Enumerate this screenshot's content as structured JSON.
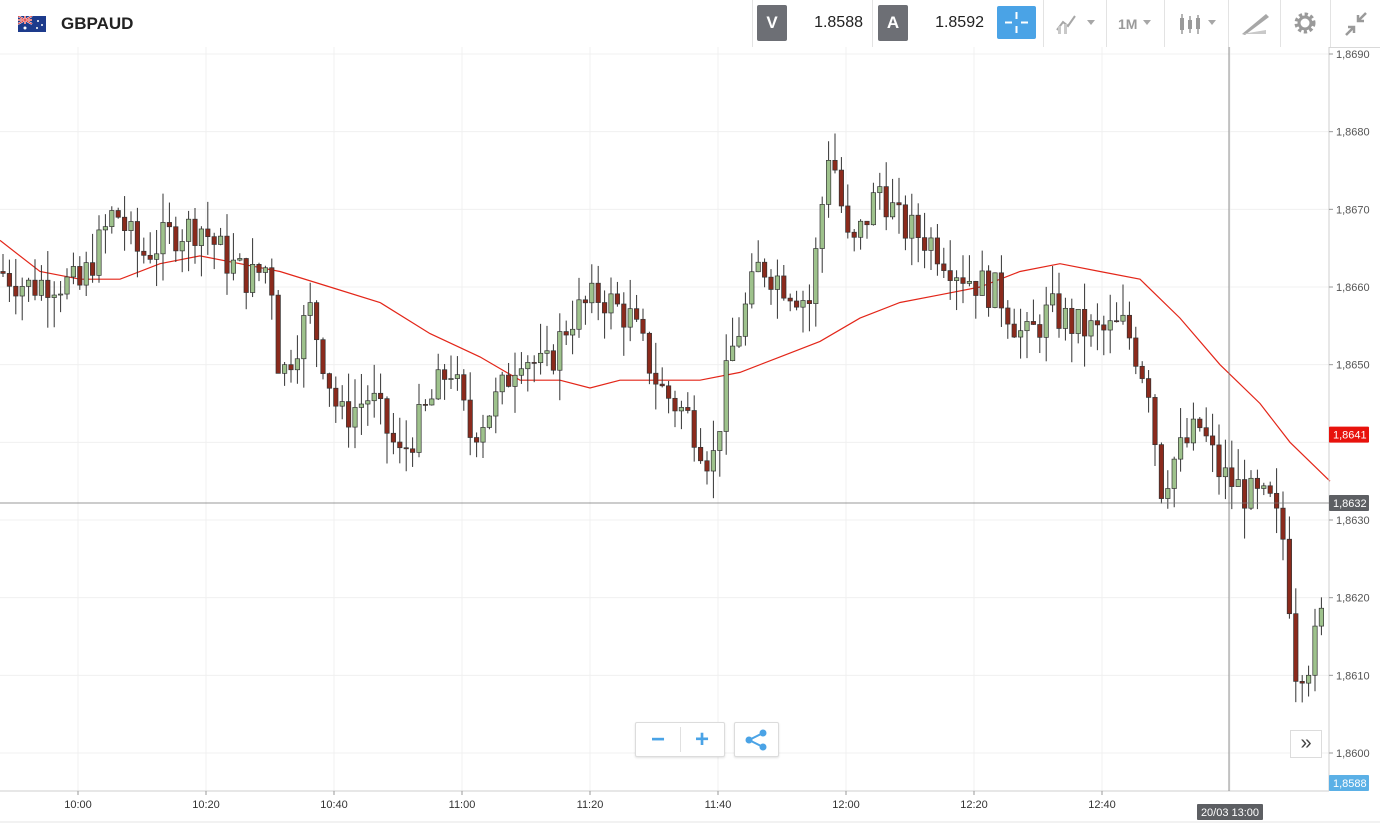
{
  "header": {
    "symbol": "GBPAUD",
    "flag_icon": "gb-au-flag-icon",
    "bid": {
      "letter": "V",
      "price": "1.8588"
    },
    "ask": {
      "letter": "A",
      "price": "1.8592"
    },
    "tools": {
      "timeframe": "1M"
    }
  },
  "controls": {
    "zoom_out": "−",
    "zoom_in": "+",
    "expand": "»"
  },
  "colors": {
    "up": "#9ec28c",
    "down": "#8b2a1c",
    "ma": "#e32619",
    "accent": "#4aa3e6",
    "last_price_bg": "#e8120c",
    "crosshair_bg": "#5d5f63",
    "bid_bg": "#5bb0e6"
  },
  "chart_data": {
    "type": "candlestick",
    "y_ticks": [
      "1,8690",
      "1,8680",
      "1,8670",
      "1,8660",
      "1,8650",
      "1,8630",
      "1,8620",
      "1,8610",
      "1,8600"
    ],
    "y_range": [
      1.8594,
      1.8691
    ],
    "x_ticks": [
      "10:00",
      "10:20",
      "10:40",
      "11:00",
      "11:20",
      "11:40",
      "12:00",
      "12:20",
      "12:40"
    ],
    "last_price_label": "1,8641",
    "crosshair_price_label": "1,8632",
    "crosshair_time_label": "20/03 13:00",
    "bid_price_label": "1,8588",
    "ma_series": [
      [
        0,
        1.8666
      ],
      [
        40,
        1.8662
      ],
      [
        80,
        1.8661
      ],
      [
        120,
        1.8661
      ],
      [
        160,
        1.8663
      ],
      [
        200,
        1.8664
      ],
      [
        240,
        1.8663
      ],
      [
        280,
        1.8662
      ],
      [
        330,
        1.866
      ],
      [
        380,
        1.8658
      ],
      [
        430,
        1.8654
      ],
      [
        480,
        1.8651
      ],
      [
        520,
        1.8648
      ],
      [
        560,
        1.8648
      ],
      [
        590,
        1.8647
      ],
      [
        620,
        1.8648
      ],
      [
        660,
        1.8648
      ],
      [
        700,
        1.8648
      ],
      [
        740,
        1.8649
      ],
      [
        780,
        1.8651
      ],
      [
        820,
        1.8653
      ],
      [
        860,
        1.8656
      ],
      [
        900,
        1.8658
      ],
      [
        940,
        1.8659
      ],
      [
        980,
        1.866
      ],
      [
        1020,
        1.8662
      ],
      [
        1060,
        1.8663
      ],
      [
        1100,
        1.8662
      ],
      [
        1140,
        1.8661
      ],
      [
        1180,
        1.8656
      ],
      [
        1220,
        1.865
      ],
      [
        1260,
        1.8645
      ],
      [
        1290,
        1.864
      ],
      [
        1330,
        1.8635
      ]
    ]
  }
}
